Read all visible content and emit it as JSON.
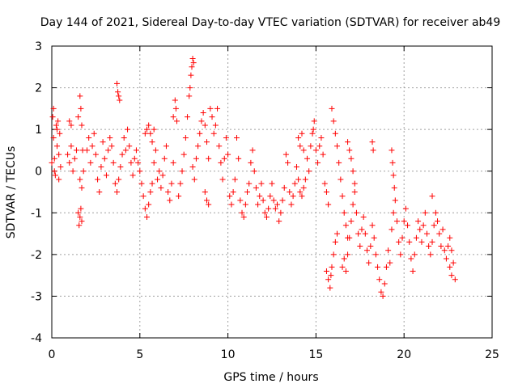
{
  "chart_data": {
    "type": "scatter",
    "title": "Day 144 of 2021, Sidereal Day-to-day VTEC variation (SDTVAR) for receiver ab49",
    "xlabel": "GPS time / hours",
    "ylabel": "SDTVAR / TECUs",
    "xlim": [
      0,
      25
    ],
    "ylim": [
      -4,
      3
    ],
    "x_ticks": [
      "0",
      "5",
      "10",
      "15",
      "20",
      "25"
    ],
    "y_ticks": [
      "-4",
      "-3",
      "-2",
      "-1",
      "0",
      "1",
      "2",
      "3"
    ],
    "x_tick_values": [
      0,
      5,
      10,
      15,
      20,
      25
    ],
    "y_tick_values": [
      -4,
      -3,
      -2,
      -1,
      0,
      1,
      2,
      3
    ],
    "grid": true,
    "marker": "+",
    "colors": {
      "series": "#ff0000",
      "grid": "#a0a0a0",
      "axis": "#000000"
    },
    "series": [
      {
        "name": "SDTVAR",
        "points": [
          [
            0.0,
            0.2
          ],
          [
            0.05,
            1.3
          ],
          [
            0.1,
            0.8
          ],
          [
            0.15,
            0.3
          ],
          [
            0.2,
            -0.1
          ],
          [
            0.25,
            1.1
          ],
          [
            0.3,
            0.6
          ],
          [
            0.35,
            1.2
          ],
          [
            0.4,
            -0.2
          ],
          [
            0.45,
            0.9
          ],
          [
            0.1,
            1.5
          ],
          [
            0.15,
            0.0
          ],
          [
            0.3,
            1.0
          ],
          [
            0.4,
            0.4
          ],
          [
            0.5,
            0.1
          ],
          [
            0.9,
            0.4
          ],
          [
            1.0,
            0.2
          ],
          [
            1.1,
            0.6
          ],
          [
            1.2,
            0.0
          ],
          [
            1.3,
            0.3
          ],
          [
            1.4,
            0.5
          ],
          [
            1.0,
            1.2
          ],
          [
            1.1,
            1.1
          ],
          [
            1.5,
            -1.0
          ],
          [
            1.55,
            -1.3
          ],
          [
            1.6,
            -1.1
          ],
          [
            1.65,
            -0.9
          ],
          [
            1.7,
            -1.2
          ],
          [
            1.5,
            1.3
          ],
          [
            1.6,
            1.8
          ],
          [
            1.65,
            1.5
          ],
          [
            1.7,
            1.1
          ],
          [
            1.75,
            0.5
          ],
          [
            1.8,
            0.0
          ],
          [
            1.6,
            -0.2
          ],
          [
            1.7,
            -0.4
          ],
          [
            2.0,
            0.5
          ],
          [
            2.1,
            0.8
          ],
          [
            2.2,
            0.2
          ],
          [
            2.3,
            0.6
          ],
          [
            2.4,
            0.9
          ],
          [
            2.5,
            0.4
          ],
          [
            2.6,
            -0.2
          ],
          [
            2.7,
            -0.5
          ],
          [
            2.8,
            0.1
          ],
          [
            2.9,
            0.7
          ],
          [
            3.0,
            0.3
          ],
          [
            3.1,
            -0.1
          ],
          [
            3.2,
            0.5
          ],
          [
            3.3,
            0.8
          ],
          [
            3.4,
            0.6
          ],
          [
            3.5,
            0.2
          ],
          [
            3.6,
            -0.3
          ],
          [
            3.7,
            -0.5
          ],
          [
            3.8,
            -0.2
          ],
          [
            3.9,
            0.1
          ],
          [
            3.7,
            2.1
          ],
          [
            3.75,
            1.9
          ],
          [
            3.8,
            1.8
          ],
          [
            3.85,
            1.7
          ],
          [
            4.0,
            0.4
          ],
          [
            4.1,
            0.8
          ],
          [
            4.2,
            0.5
          ],
          [
            4.3,
            1.0
          ],
          [
            4.4,
            0.6
          ],
          [
            4.5,
            0.2
          ],
          [
            4.6,
            -0.1
          ],
          [
            4.7,
            0.3
          ],
          [
            4.8,
            0.5
          ],
          [
            4.9,
            0.2
          ],
          [
            5.0,
            0.0
          ],
          [
            5.1,
            -0.3
          ],
          [
            5.2,
            -0.6
          ],
          [
            5.3,
            -0.9
          ],
          [
            5.4,
            -1.1
          ],
          [
            5.5,
            -0.8
          ],
          [
            5.6,
            -0.5
          ],
          [
            5.7,
            -0.3
          ],
          [
            5.8,
            0.2
          ],
          [
            5.9,
            0.5
          ],
          [
            5.3,
            0.9
          ],
          [
            5.4,
            1.0
          ],
          [
            5.5,
            1.1
          ],
          [
            5.6,
            0.9
          ],
          [
            5.7,
            0.7
          ],
          [
            5.8,
            1.0
          ],
          [
            6.0,
            -0.2
          ],
          [
            6.1,
            0.0
          ],
          [
            6.2,
            -0.4
          ],
          [
            6.3,
            -0.1
          ],
          [
            6.4,
            0.3
          ],
          [
            6.5,
            0.6
          ],
          [
            6.6,
            -0.5
          ],
          [
            6.7,
            -0.7
          ],
          [
            6.8,
            -0.3
          ],
          [
            6.9,
            0.2
          ],
          [
            6.9,
            1.3
          ],
          [
            7.0,
            1.7
          ],
          [
            7.05,
            1.5
          ],
          [
            7.1,
            1.2
          ],
          [
            7.2,
            -0.6
          ],
          [
            7.3,
            -0.3
          ],
          [
            7.4,
            0.0
          ],
          [
            7.5,
            0.4
          ],
          [
            7.6,
            0.8
          ],
          [
            7.7,
            1.3
          ],
          [
            7.8,
            1.8
          ],
          [
            7.9,
            2.3
          ],
          [
            8.0,
            2.7
          ],
          [
            8.05,
            2.6
          ],
          [
            7.85,
            2.0
          ],
          [
            7.95,
            2.5
          ],
          [
            8.0,
            0.1
          ],
          [
            8.1,
            -0.2
          ],
          [
            8.2,
            0.3
          ],
          [
            8.3,
            0.6
          ],
          [
            8.4,
            0.9
          ],
          [
            8.5,
            1.2
          ],
          [
            8.6,
            1.4
          ],
          [
            8.7,
            1.1
          ],
          [
            8.8,
            0.7
          ],
          [
            8.9,
            0.3
          ],
          [
            8.7,
            -0.5
          ],
          [
            8.8,
            -0.7
          ],
          [
            8.9,
            -0.8
          ],
          [
            9.0,
            1.5
          ],
          [
            9.1,
            1.3
          ],
          [
            9.2,
            0.9
          ],
          [
            9.3,
            1.1
          ],
          [
            9.4,
            1.5
          ],
          [
            9.5,
            0.6
          ],
          [
            9.6,
            0.2
          ],
          [
            9.7,
            -0.2
          ],
          [
            9.8,
            0.3
          ],
          [
            9.9,
            0.8
          ],
          [
            10.0,
            0.4
          ],
          [
            10.1,
            -0.6
          ],
          [
            10.2,
            -0.8
          ],
          [
            10.3,
            -0.5
          ],
          [
            10.4,
            -0.2
          ],
          [
            10.5,
            0.8
          ],
          [
            10.6,
            0.3
          ],
          [
            10.7,
            -0.7
          ],
          [
            10.8,
            -1.0
          ],
          [
            10.9,
            -1.1
          ],
          [
            11.0,
            -0.8
          ],
          [
            11.1,
            -0.5
          ],
          [
            11.2,
            -0.3
          ],
          [
            11.3,
            0.2
          ],
          [
            11.4,
            0.5
          ],
          [
            11.5,
            0.0
          ],
          [
            11.6,
            -0.4
          ],
          [
            11.7,
            -0.8
          ],
          [
            11.8,
            -0.6
          ],
          [
            11.9,
            -0.3
          ],
          [
            12.0,
            -0.7
          ],
          [
            12.1,
            -1.0
          ],
          [
            12.2,
            -1.1
          ],
          [
            12.3,
            -0.9
          ],
          [
            12.4,
            -0.6
          ],
          [
            12.5,
            -0.3
          ],
          [
            12.6,
            -0.7
          ],
          [
            12.7,
            -0.9
          ],
          [
            12.8,
            -0.8
          ],
          [
            12.9,
            -1.2
          ],
          [
            13.0,
            -1.0
          ],
          [
            13.1,
            -0.7
          ],
          [
            13.2,
            -0.4
          ],
          [
            13.3,
            0.4
          ],
          [
            13.4,
            0.2
          ],
          [
            13.5,
            -0.5
          ],
          [
            13.6,
            -0.8
          ],
          [
            13.7,
            -0.6
          ],
          [
            13.8,
            -0.3
          ],
          [
            13.9,
            0.1
          ],
          [
            14.0,
            -0.2
          ],
          [
            14.1,
            -0.5
          ],
          [
            14.2,
            -0.6
          ],
          [
            14.3,
            -0.4
          ],
          [
            14.4,
            -0.2
          ],
          [
            14.0,
            0.8
          ],
          [
            14.1,
            0.6
          ],
          [
            14.2,
            0.9
          ],
          [
            14.3,
            0.5
          ],
          [
            14.5,
            0.3
          ],
          [
            14.6,
            0.0
          ],
          [
            14.7,
            0.6
          ],
          [
            14.8,
            0.9
          ],
          [
            14.9,
            1.2
          ],
          [
            14.85,
            1.0
          ],
          [
            15.0,
            0.5
          ],
          [
            15.1,
            0.2
          ],
          [
            15.2,
            0.6
          ],
          [
            15.3,
            0.8
          ],
          [
            15.4,
            0.4
          ],
          [
            15.5,
            -0.3
          ],
          [
            15.6,
            -0.5
          ],
          [
            15.7,
            -0.8
          ],
          [
            15.6,
            -2.4
          ],
          [
            15.7,
            -2.6
          ],
          [
            15.8,
            -2.8
          ],
          [
            15.85,
            -2.5
          ],
          [
            15.9,
            -2.3
          ],
          [
            16.0,
            -2.0
          ],
          [
            16.1,
            -1.7
          ],
          [
            16.2,
            -1.5
          ],
          [
            15.9,
            1.5
          ],
          [
            16.0,
            1.2
          ],
          [
            16.1,
            0.9
          ],
          [
            16.2,
            0.6
          ],
          [
            16.3,
            0.2
          ],
          [
            16.4,
            -0.2
          ],
          [
            16.5,
            -0.6
          ],
          [
            16.6,
            -1.0
          ],
          [
            16.7,
            -1.3
          ],
          [
            16.8,
            -1.6
          ],
          [
            16.5,
            -2.3
          ],
          [
            16.6,
            -2.1
          ],
          [
            16.7,
            -2.4
          ],
          [
            16.8,
            -2.0
          ],
          [
            16.9,
            -1.6
          ],
          [
            17.0,
            -1.2
          ],
          [
            17.1,
            -0.8
          ],
          [
            17.2,
            -0.5
          ],
          [
            17.3,
            -1.0
          ],
          [
            17.4,
            -1.5
          ],
          [
            16.8,
            0.7
          ],
          [
            16.9,
            0.5
          ],
          [
            17.0,
            0.3
          ],
          [
            17.1,
            0.0
          ],
          [
            17.2,
            -0.3
          ],
          [
            17.5,
            -1.8
          ],
          [
            17.6,
            -1.4
          ],
          [
            17.7,
            -1.1
          ],
          [
            17.8,
            -1.5
          ],
          [
            17.9,
            -1.9
          ],
          [
            18.0,
            -2.2
          ],
          [
            18.1,
            -1.8
          ],
          [
            18.2,
            -1.3
          ],
          [
            18.3,
            -1.6
          ],
          [
            18.4,
            -2.0
          ],
          [
            18.2,
            0.7
          ],
          [
            18.25,
            0.5
          ],
          [
            18.5,
            -2.3
          ],
          [
            18.6,
            -2.6
          ],
          [
            18.7,
            -2.9
          ],
          [
            18.8,
            -3.0
          ],
          [
            18.9,
            -2.7
          ],
          [
            19.0,
            -2.3
          ],
          [
            19.1,
            -1.9
          ],
          [
            19.2,
            -2.2
          ],
          [
            19.3,
            -1.4
          ],
          [
            19.4,
            -1.0
          ],
          [
            19.5,
            -0.7
          ],
          [
            19.6,
            -1.2
          ],
          [
            19.7,
            -1.7
          ],
          [
            19.8,
            -2.0
          ],
          [
            19.9,
            -1.6
          ],
          [
            20.0,
            -1.2
          ],
          [
            20.1,
            -0.9
          ],
          [
            20.2,
            -1.3
          ],
          [
            19.3,
            0.5
          ],
          [
            19.35,
            0.2
          ],
          [
            19.4,
            -0.1
          ],
          [
            19.45,
            -0.4
          ],
          [
            20.3,
            -1.7
          ],
          [
            20.4,
            -2.1
          ],
          [
            20.5,
            -2.4
          ],
          [
            20.6,
            -2.0
          ],
          [
            20.7,
            -1.6
          ],
          [
            20.8,
            -1.2
          ],
          [
            20.9,
            -1.4
          ],
          [
            21.0,
            -1.7
          ],
          [
            21.1,
            -1.3
          ],
          [
            21.2,
            -1.0
          ],
          [
            21.3,
            -1.5
          ],
          [
            21.4,
            -1.8
          ],
          [
            21.5,
            -2.0
          ],
          [
            21.6,
            -1.7
          ],
          [
            21.7,
            -1.3
          ],
          [
            21.8,
            -1.0
          ],
          [
            21.9,
            -1.2
          ],
          [
            22.0,
            -1.5
          ],
          [
            22.1,
            -1.8
          ],
          [
            22.2,
            -1.4
          ],
          [
            21.6,
            -0.6
          ],
          [
            22.3,
            -1.9
          ],
          [
            22.4,
            -2.1
          ],
          [
            22.5,
            -1.8
          ],
          [
            22.6,
            -2.3
          ],
          [
            22.7,
            -2.5
          ],
          [
            22.8,
            -2.2
          ],
          [
            22.9,
            -2.6
          ],
          [
            22.6,
            -1.6
          ],
          [
            22.7,
            -1.9
          ]
        ]
      }
    ]
  }
}
